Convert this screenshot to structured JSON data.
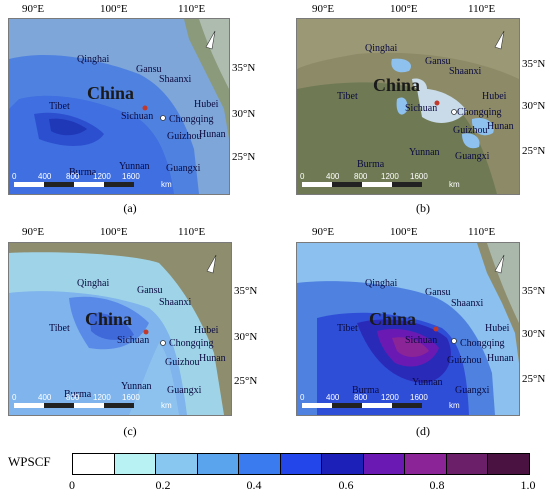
{
  "panels": [
    {
      "id": "a",
      "caption": "(a)",
      "style": "blue"
    },
    {
      "id": "b",
      "caption": "(b)",
      "style": "clear"
    },
    {
      "id": "c",
      "caption": "(c)",
      "style": "light"
    },
    {
      "id": "d",
      "caption": "(d)",
      "style": "purple"
    }
  ],
  "axes": {
    "lon": [
      "90°E",
      "100°E",
      "110°E"
    ],
    "lat": [
      "35°N",
      "30°N",
      "25°N"
    ]
  },
  "places": {
    "country": "China",
    "regions": [
      "Qinghai",
      "Gansu",
      "Shaanxi",
      "Tibet",
      "Sichuan",
      "Chongqing",
      "Hubei",
      "Guizhou",
      "Hunan",
      "Yunnan",
      "Guangxi"
    ],
    "neighbor": "Burma"
  },
  "scalebar": {
    "ticks": [
      "0",
      "400",
      "800",
      "1200",
      "1600"
    ],
    "unit": "km"
  },
  "legend": {
    "title": "WPSCF",
    "ticks": [
      "0",
      "0.2",
      "0.4",
      "0.6",
      "0.8",
      "1.0"
    ],
    "colors": [
      "#ffffff",
      "#b8f2f2",
      "#87c7f0",
      "#5aa4ee",
      "#3b7bf0",
      "#2346ea",
      "#1c1fb8",
      "#6a1ab2",
      "#8a2497",
      "#6a1f68",
      "#4a1240"
    ]
  }
}
